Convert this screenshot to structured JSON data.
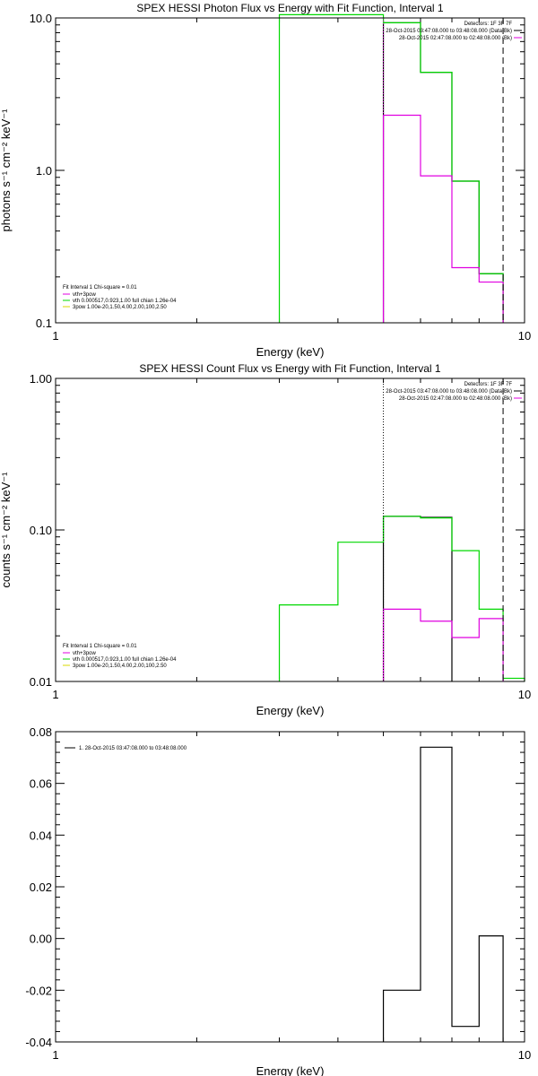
{
  "chart_data": [
    {
      "type": "line",
      "title": "SPEX HESSI Photon Flux vs Energy with Fit Function, Interval 1",
      "xlabel": "Energy (keV)",
      "ylabel": "photons s⁻¹ cm⁻² keV⁻¹",
      "xscale": "log",
      "yscale": "log",
      "xlim": [
        1,
        10
      ],
      "ylim": [
        0.1,
        10.0
      ],
      "xticks": [
        "1",
        "10"
      ],
      "yticks": [
        "0.1",
        "1.0",
        "10.0"
      ],
      "header": [
        "Detectors: 1F 3F 7F",
        "28-Oct-2015 03:47:08.000 to 03:48:08.000 (Data-Bk)",
        "28-Oct-2015 02:47:08.000 to 02:48:08.000 (Bk)"
      ],
      "legend_title": "Fit Interval 1    Chi-square = 0.01",
      "legend": [
        "vth+3pow",
        "vth 0.000517,0.923,1.00  full chian 1.26e-04",
        "3pow 1.00e-20,1.50,4.00,2.00,100,2.50"
      ],
      "series": [
        {
          "name": "Data-Bk",
          "color": "#000000",
          "edges": [
            5,
            6,
            7,
            8,
            9
          ],
          "values": [
            9.3,
            4.4,
            0.85,
            0.21
          ]
        },
        {
          "name": "vth+3pow",
          "color": "#00d800",
          "edges": [
            3,
            4,
            5,
            6,
            7,
            8,
            9
          ],
          "values": [
            10.5,
            10.5,
            9.3,
            4.4,
            0.85,
            0.21
          ]
        },
        {
          "name": "Bk",
          "color": "#e000e0",
          "edges": [
            5,
            6,
            7,
            8,
            9
          ],
          "values": [
            2.3,
            0.92,
            0.23,
            0.185
          ]
        }
      ],
      "markers": [
        {
          "x": 5,
          "style": "dotted",
          "color": "#e000e0"
        },
        {
          "x": 9,
          "style": "dashed",
          "color": "#000000"
        }
      ]
    },
    {
      "type": "line",
      "title": "SPEX HESSI Count Flux vs Energy with Fit Function, Interval 1",
      "xlabel": "Energy (keV)",
      "ylabel": "counts s⁻¹ cm⁻² keV⁻¹",
      "xscale": "log",
      "yscale": "log",
      "xlim": [
        1,
        10
      ],
      "ylim": [
        0.01,
        1.0
      ],
      "xticks": [
        "1",
        "10"
      ],
      "yticks": [
        "0.01",
        "0.10",
        "1.00"
      ],
      "header": [
        "Detectors: 1F 3F 7F",
        "28-Oct-2015 03:47:08.000 to 03:48:08.000 (Data-Bk)",
        "28-Oct-2015 02:47:08.000 to 02:48:08.000 (Bk)"
      ],
      "legend_title": "Fit Interval 1    Chi-square = 0.01",
      "legend": [
        "vth+3pow",
        "vth 0.000517,0.923,1.00  full chian 1.26e-04",
        "3pow 1.00e-20,1.50,4.00,2.00,100,2.50"
      ],
      "series": [
        {
          "name": "Data-Bk",
          "color": "#000000",
          "edges": [
            5,
            6,
            7
          ],
          "values": [
            0.123,
            0.121
          ]
        },
        {
          "name": "vth+3pow",
          "color": "#00d800",
          "edges": [
            3,
            4,
            5,
            6,
            7,
            8,
            9,
            10
          ],
          "values": [
            0.032,
            0.083,
            0.123,
            0.12,
            0.073,
            0.03,
            0.0105
          ]
        },
        {
          "name": "Bk",
          "color": "#e000e0",
          "edges": [
            5,
            6,
            7,
            8,
            9
          ],
          "values": [
            0.03,
            0.025,
            0.0195,
            0.026
          ]
        }
      ],
      "markers": [
        {
          "x": 5,
          "style": "dotted",
          "color": "#000000"
        },
        {
          "x": 9,
          "style": "dashed",
          "color": "#000000"
        }
      ]
    },
    {
      "type": "line",
      "title": "",
      "xlabel": "Energy (keV)",
      "ylabel": "",
      "xscale": "log",
      "yscale": "linear",
      "xlim": [
        1,
        10
      ],
      "ylim": [
        -0.04,
        0.08
      ],
      "xticks": [
        "1",
        "10"
      ],
      "yticks": [
        "-0.04",
        "-0.02",
        "0.00",
        "0.02",
        "0.04",
        "0.06",
        "0.08"
      ],
      "header": [],
      "legend_title": "",
      "legend": [
        "1. 28-Oct-2015 03:47:08.000 to 03:48:08.000"
      ],
      "series": [
        {
          "name": "1. 28-Oct-2015 03:47:08.000 to 03:48:08.000",
          "color": "#000000",
          "edges": [
            5,
            6,
            7,
            8,
            9
          ],
          "values": [
            -0.02,
            0.074,
            -0.034,
            0.001
          ]
        }
      ],
      "markers": []
    }
  ]
}
